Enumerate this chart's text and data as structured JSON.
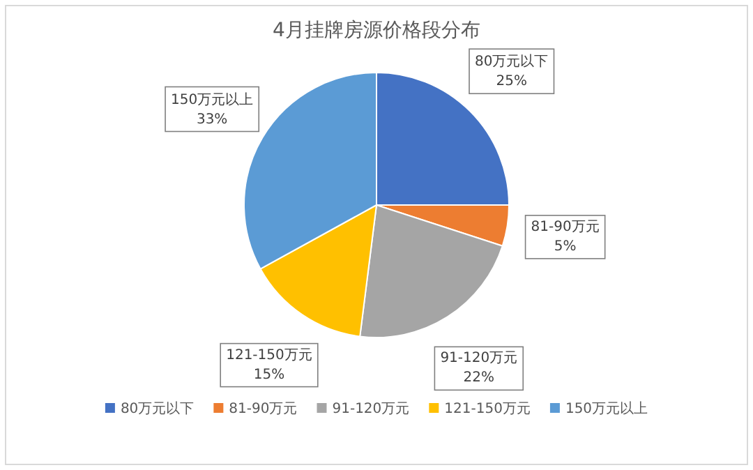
{
  "chart_data": {
    "type": "pie",
    "title": "4月挂牌房源价格段分布",
    "categories": [
      "80万元以下",
      "81-90万元",
      "91-120万元",
      "121-150万元",
      "150万元以上"
    ],
    "values": [
      25,
      5,
      22,
      15,
      33
    ],
    "colors": [
      "#4472c4",
      "#ed7d31",
      "#a5a5a5",
      "#ffc000",
      "#5b9bd5"
    ],
    "value_labels": [
      "25%",
      "5%",
      "22%",
      "15%",
      "33%"
    ],
    "legend": "bottom"
  }
}
